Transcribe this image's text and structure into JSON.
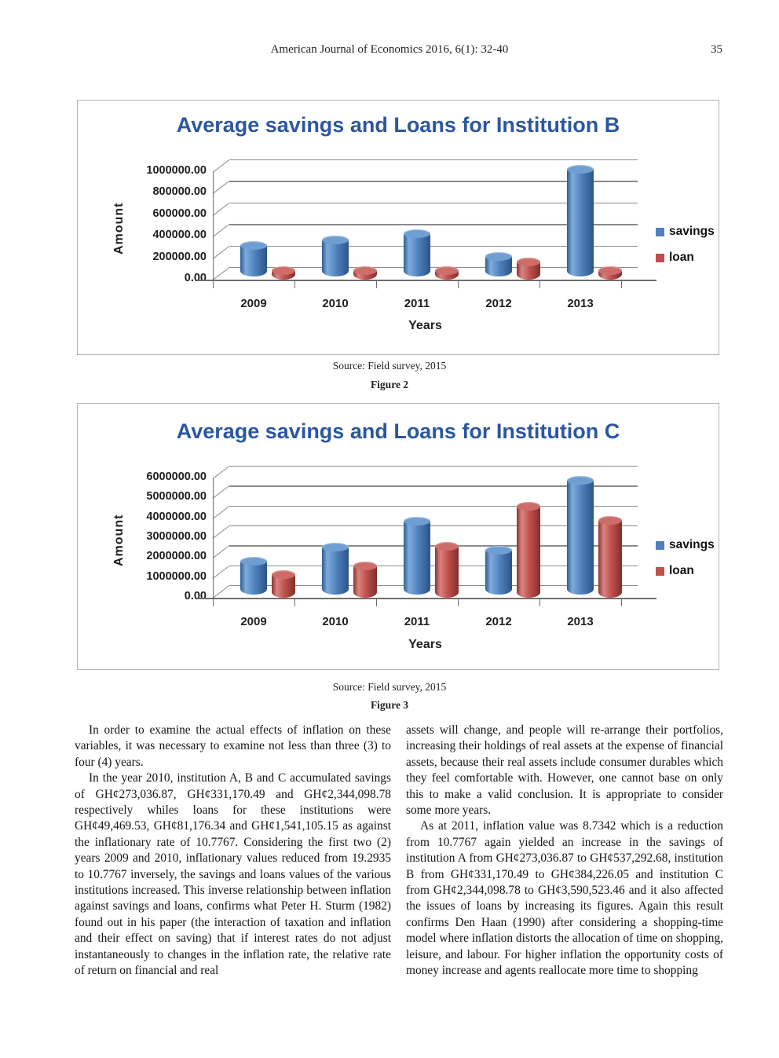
{
  "header": {
    "journal_line": "American Journal of Economics 2016, 6(1): 32-40",
    "page_number": "35"
  },
  "figure2": {
    "source": "Source: Field survey, 2015",
    "label": "Figure 2"
  },
  "figure3": {
    "source": "Source: Field survey, 2015",
    "label": "Figure 3"
  },
  "colors": {
    "savings": "#4F81BD",
    "loan": "#C0504D",
    "chart_title": "#2B579F",
    "gridline": "#8A8A8A"
  },
  "chart_data": [
    {
      "type": "bar",
      "style": "3d-cylinder",
      "title": "Average savings and Loans for Institution B",
      "categories": [
        "2009",
        "2010",
        "2011",
        "2012",
        "2013"
      ],
      "series": [
        {
          "name": "savings",
          "color": "#4F81BD",
          "values": [
            290000,
            340000,
            400000,
            190000,
            1000000
          ]
        },
        {
          "name": "loan",
          "color": "#C0504D",
          "values": [
            90000,
            85000,
            90000,
            170000,
            90000
          ]
        }
      ],
      "xlabel": "Years",
      "ylabel": "Amount",
      "ylim": [
        0,
        1000000
      ],
      "ytick_step": 200000,
      "ytick_labels": [
        "0.00",
        "200000.00",
        "400000.00",
        "600000.00",
        "800000.00",
        "1000000.00"
      ],
      "legend_position": "right",
      "legend": [
        "savings",
        "loan"
      ],
      "grid": true
    },
    {
      "type": "bar",
      "style": "3d-cylinder",
      "title": "Average savings and Loans for Institution C",
      "categories": [
        "2009",
        "2010",
        "2011",
        "2012",
        "2013"
      ],
      "series": [
        {
          "name": "savings",
          "color": "#4F81BD",
          "values": [
            1700000,
            2400000,
            3700000,
            2250000,
            5750000
          ]
        },
        {
          "name": "loan",
          "color": "#C0504D",
          "values": [
            1200000,
            1600000,
            2600000,
            4600000,
            3900000
          ]
        }
      ],
      "xlabel": "Years",
      "ylabel": "Amount",
      "ylim": [
        0,
        6000000
      ],
      "ytick_step": 1000000,
      "ytick_labels": [
        "0.00",
        "1000000.00",
        "2000000.00",
        "3000000.00",
        "4000000.00",
        "5000000.00",
        "6000000.00"
      ],
      "legend_position": "right",
      "legend": [
        "savings",
        "loan"
      ],
      "grid": true
    }
  ],
  "body": {
    "left_column": [
      "In order to examine the actual effects of inflation on these variables, it was necessary to examine not less than three (3) to four (4) years.",
      "In the year 2010, institution A, B and C accumulated savings of GH¢273,036.87, GH¢331,170.49 and GH¢2,344,098.78 respectively whiles loans for these institutions were GH¢49,469.53, GH¢81,176.34 and GH¢1,541,105.15 as against the inflationary rate of 10.7767. Considering the first two (2) years 2009 and 2010, inflationary values reduced from 19.2935 to 10.7767 inversely, the savings and loans values of the various institutions increased. This inverse relationship between inflation against savings and loans, confirms what Peter H. Sturm (1982) found out in his paper (the interaction of taxation and inflation and their effect on saving) that if interest rates do not adjust instantaneously to changes in the inflation rate, the relative rate of return on financial and real"
    ],
    "right_column": [
      "assets will change, and people will re-arrange their portfolios, increasing their holdings of real assets at the expense of financial assets, because their real assets include consumer durables which they feel comfortable with. However, one cannot base on only this to make a valid conclusion. It is appropriate to consider some more years.",
      "As at 2011, inflation value was 8.7342 which is a reduction from 10.7767 again yielded an increase in the savings of institution A from GH¢273,036.87 to GH¢537,292.68, institution B from GH¢331,170.49 to GH¢384,226.05 and institution C from GH¢2,344,098.78 to GH¢3,590,523.46 and it also affected the issues of loans by increasing its figures. Again this result confirms Den Haan (1990) after considering a shopping-time model where inflation distorts the allocation of time on shopping, leisure, and labour. For higher inflation the opportunity costs of money increase and agents reallocate more time to shopping"
    ]
  }
}
